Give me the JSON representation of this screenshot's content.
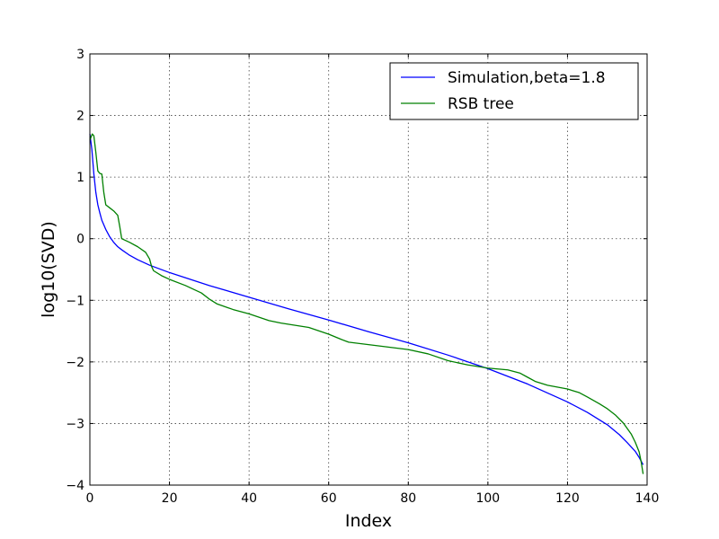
{
  "chart_data": {
    "type": "line",
    "xlabel": "Index",
    "ylabel": "log10(SVD)",
    "xlim": [
      0,
      140
    ],
    "ylim": [
      -4,
      3
    ],
    "xticks": [
      "0",
      "20",
      "40",
      "60",
      "80",
      "100",
      "120",
      "140"
    ],
    "yticks": [
      "3",
      "2",
      "1",
      "0",
      "−1",
      "−2",
      "−3",
      "−4"
    ],
    "grid": true,
    "legend_position": "top-right",
    "series": [
      {
        "name": "Simulation,beta=1.8",
        "color": "#0000ff",
        "x": [
          0,
          0.5,
          1,
          1.5,
          2,
          2.5,
          3,
          4,
          5,
          6,
          7,
          8,
          10,
          12,
          15,
          20,
          30,
          40,
          50,
          60,
          70,
          80,
          90,
          100,
          110,
          120,
          125,
          130,
          133,
          135,
          137,
          138,
          139
        ],
        "y": [
          1.7,
          1.45,
          1.05,
          0.75,
          0.55,
          0.42,
          0.3,
          0.15,
          0.03,
          -0.06,
          -0.13,
          -0.18,
          -0.27,
          -0.34,
          -0.43,
          -0.55,
          -0.76,
          -0.95,
          -1.14,
          -1.32,
          -1.51,
          -1.69,
          -1.89,
          -2.11,
          -2.36,
          -2.65,
          -2.82,
          -3.02,
          -3.18,
          -3.31,
          -3.45,
          -3.55,
          -3.67
        ]
      },
      {
        "name": "RSB tree",
        "color": "#008000",
        "x": [
          0,
          0.6,
          1,
          1.5,
          2,
          2.5,
          3,
          3.5,
          4,
          5,
          6,
          7,
          7.5,
          8,
          10,
          12,
          14,
          15,
          15.5,
          16,
          18,
          20,
          24,
          28,
          30,
          32,
          36,
          40,
          45,
          48,
          55,
          60,
          63,
          65,
          70,
          75,
          80,
          85,
          90,
          95,
          100,
          105,
          108,
          110,
          112,
          115,
          120,
          123,
          125,
          128,
          130,
          132,
          134,
          136,
          137,
          138,
          138.5,
          139
        ],
        "y": [
          1.6,
          1.7,
          1.67,
          1.4,
          1.1,
          1.06,
          1.05,
          0.75,
          0.55,
          0.5,
          0.45,
          0.38,
          0.2,
          0.0,
          -0.06,
          -0.13,
          -0.22,
          -0.33,
          -0.45,
          -0.52,
          -0.6,
          -0.66,
          -0.76,
          -0.88,
          -0.98,
          -1.06,
          -1.15,
          -1.22,
          -1.33,
          -1.37,
          -1.44,
          -1.55,
          -1.63,
          -1.68,
          -1.72,
          -1.76,
          -1.8,
          -1.87,
          -1.98,
          -2.05,
          -2.1,
          -2.13,
          -2.18,
          -2.25,
          -2.32,
          -2.38,
          -2.44,
          -2.5,
          -2.57,
          -2.68,
          -2.76,
          -2.86,
          -2.99,
          -3.17,
          -3.3,
          -3.46,
          -3.62,
          -3.82
        ]
      }
    ]
  }
}
